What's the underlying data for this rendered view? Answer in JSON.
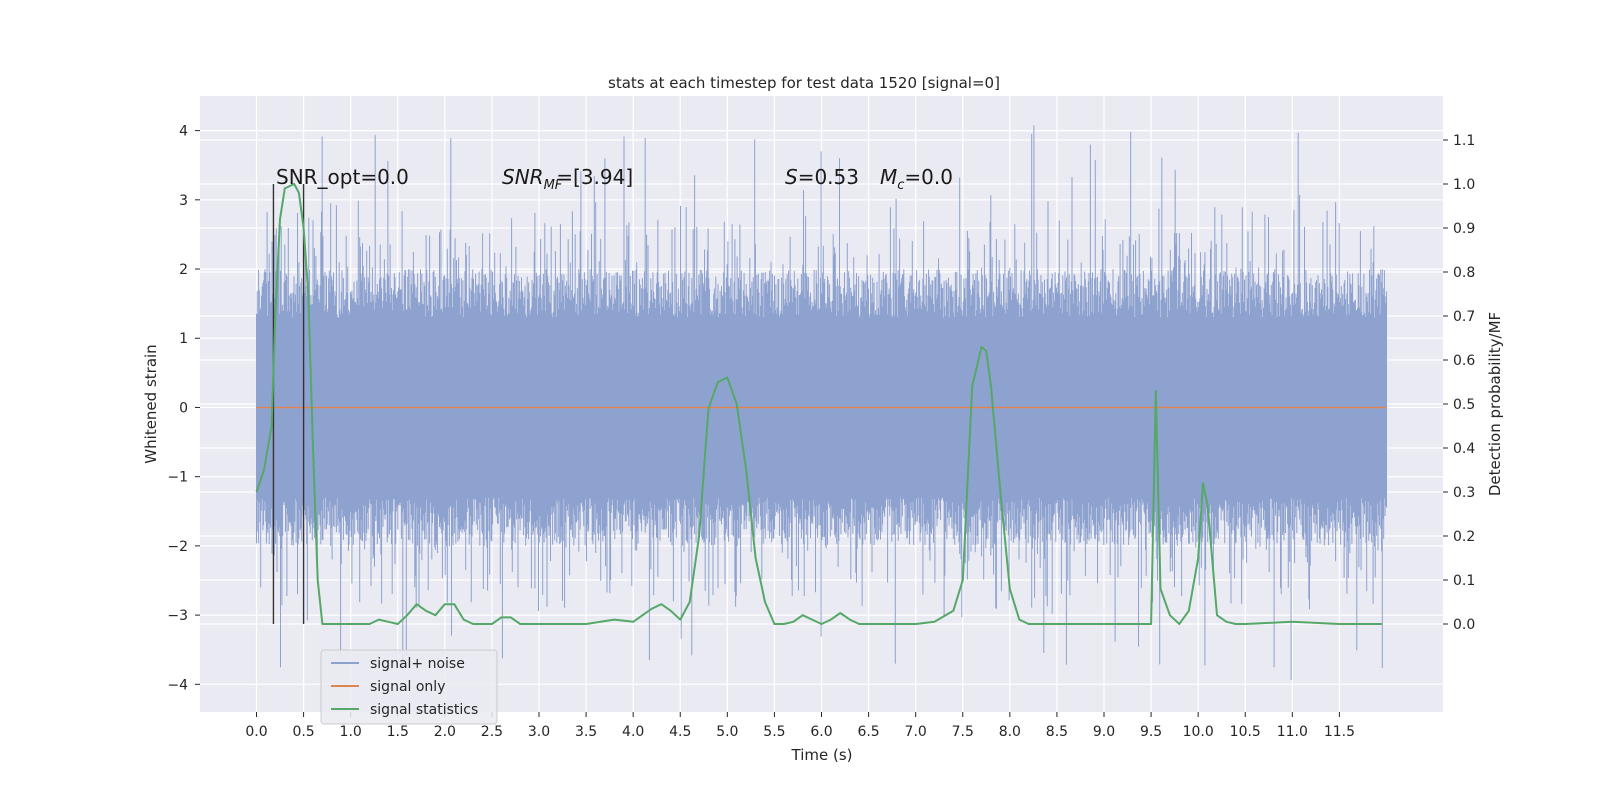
{
  "chart_data": {
    "type": "line",
    "title": "stats at each timestep for test data 1520 [signal=0]",
    "xlabel": "Time (s)",
    "ylabel": "Whitened strain",
    "y2label": "Detection probability/MF",
    "xlim": [
      -0.6,
      12.6
    ],
    "ylim": [
      -4.4,
      4.5
    ],
    "y2lim": [
      -0.2,
      1.2
    ],
    "x_ticks": [
      "0.0",
      "0.5",
      "1.0",
      "1.5",
      "2.0",
      "2.5",
      "3.0",
      "3.5",
      "4.0",
      "4.5",
      "5.0",
      "5.5",
      "6.0",
      "6.5",
      "7.0",
      "7.5",
      "8.0",
      "8.5",
      "9.0",
      "9.5",
      "10.0",
      "10.5",
      "11.0",
      "11.5"
    ],
    "y_ticks": [
      "4",
      "3",
      "2",
      "1",
      "0",
      "−1",
      "−2",
      "−3",
      "−4"
    ],
    "y2_ticks": [
      "1.1",
      "1.0",
      "0.9",
      "0.8",
      "0.7",
      "0.6",
      "0.5",
      "0.4",
      "0.3",
      "0.2",
      "0.1",
      "0.0"
    ],
    "grid": true,
    "legend_position": "lower-left",
    "annotations": {
      "snr_opt": "SNR_opt=0.0",
      "snr_mf_prefix": "SNR",
      "snr_mf_sub": "MF",
      "snr_mf_value": "=[3.94]",
      "s_symbol": "S",
      "s_value": "=0.53",
      "mc_symbol": "M",
      "mc_sub": "c",
      "mc_value": "=0.0"
    },
    "vlines_x": [
      0.18,
      0.5
    ],
    "series": [
      {
        "name": "signal+ noise",
        "color": "#8ea2cf",
        "envelope": {
          "x_range": [
            0.0,
            12.0
          ],
          "core_min": -1.3,
          "core_max": 1.3,
          "typical_min": -2.0,
          "typical_max": 2.0,
          "peak_max": 4.1,
          "peak_min": -4.0
        }
      },
      {
        "name": "signal only",
        "color": "#dd8452",
        "x": [
          0.0,
          12.0
        ],
        "values": [
          0.0,
          0.0
        ]
      },
      {
        "name": "signal statistics",
        "color": "#55a868",
        "axis": "right",
        "x": [
          0.0,
          0.08,
          0.16,
          0.2,
          0.25,
          0.3,
          0.4,
          0.45,
          0.5,
          0.55,
          0.6,
          0.65,
          0.7,
          0.8,
          1.0,
          1.2,
          1.3,
          1.4,
          1.5,
          1.6,
          1.7,
          1.8,
          1.9,
          2.0,
          2.1,
          2.2,
          2.3,
          2.4,
          2.5,
          2.6,
          2.7,
          2.8,
          2.9,
          3.0,
          3.5,
          3.8,
          4.0,
          4.1,
          4.2,
          4.3,
          4.4,
          4.5,
          4.6,
          4.7,
          4.8,
          4.9,
          5.0,
          5.1,
          5.2,
          5.3,
          5.4,
          5.5,
          5.6,
          5.7,
          5.8,
          5.9,
          6.0,
          6.1,
          6.2,
          6.3,
          6.4,
          6.5,
          7.0,
          7.2,
          7.4,
          7.5,
          7.6,
          7.7,
          7.75,
          7.8,
          7.9,
          8.0,
          8.1,
          8.2,
          9.0,
          9.4,
          9.5,
          9.55,
          9.6,
          9.7,
          9.8,
          9.9,
          10.0,
          10.05,
          10.1,
          10.2,
          10.3,
          10.4,
          10.5,
          11.0,
          11.5,
          11.95
        ],
        "values": [
          0.3,
          0.35,
          0.45,
          0.7,
          0.92,
          0.99,
          1.0,
          0.98,
          0.9,
          0.75,
          0.4,
          0.1,
          0.0,
          0.0,
          0.0,
          0.0,
          0.01,
          0.005,
          0.0,
          0.02,
          0.045,
          0.03,
          0.02,
          0.045,
          0.045,
          0.01,
          0.0,
          0.0,
          0.0,
          0.015,
          0.015,
          0.0,
          0.0,
          0.0,
          0.0,
          0.01,
          0.005,
          0.02,
          0.035,
          0.045,
          0.03,
          0.01,
          0.05,
          0.2,
          0.49,
          0.55,
          0.56,
          0.5,
          0.35,
          0.15,
          0.05,
          0.0,
          0.0,
          0.005,
          0.02,
          0.01,
          0.0,
          0.01,
          0.025,
          0.01,
          0.0,
          0.0,
          0.0,
          0.005,
          0.03,
          0.1,
          0.54,
          0.63,
          0.62,
          0.54,
          0.3,
          0.08,
          0.01,
          0.0,
          0.0,
          0.0,
          0.0,
          0.53,
          0.08,
          0.02,
          0.0,
          0.03,
          0.15,
          0.32,
          0.27,
          0.02,
          0.005,
          0.0,
          0.0,
          0.005,
          0.0,
          0.0
        ]
      }
    ]
  }
}
